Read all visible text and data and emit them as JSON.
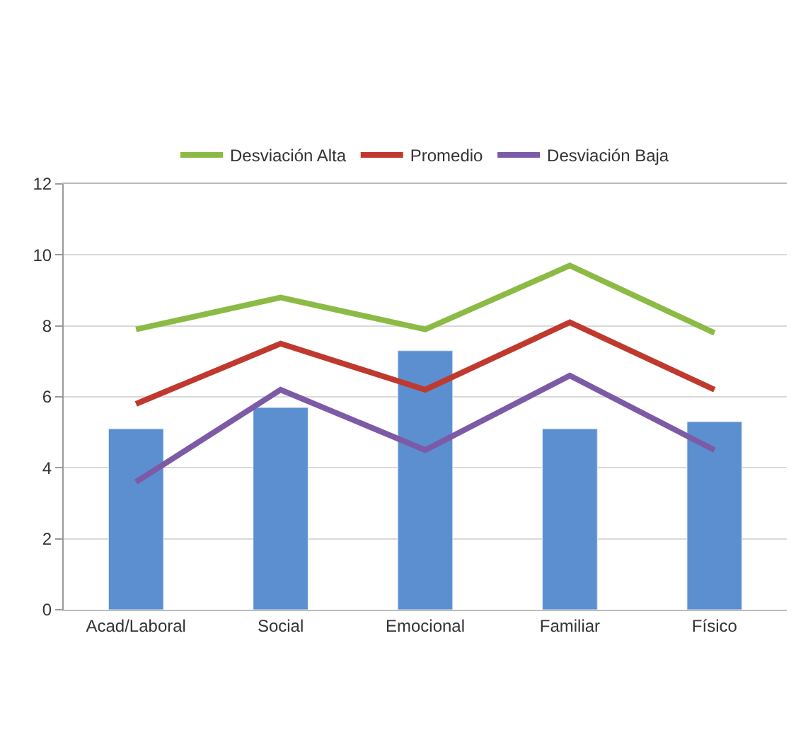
{
  "chart_data": {
    "type": "bar",
    "categories": [
      "Acad/Laboral",
      "Social",
      "Emocional",
      "Familiar",
      "Físico"
    ],
    "series": [
      {
        "color": "#5b8fd0",
        "values": [
          5.1,
          5.7,
          7.3,
          5.1,
          5.3
        ]
      },
      {
        "type": "line",
        "name": "Desviación Alta",
        "color": "#8cbb45",
        "values": [
          7.9,
          8.8,
          7.9,
          9.7,
          7.8
        ]
      },
      {
        "type": "line",
        "name": "Promedio",
        "color": "#c0392f",
        "values": [
          5.8,
          7.5,
          6.2,
          8.1,
          6.2
        ]
      },
      {
        "type": "line",
        "name": "Desviación Baja",
        "color": "#7d5aa6",
        "values": [
          3.6,
          6.2,
          4.5,
          6.6,
          4.5
        ]
      }
    ],
    "ylim": [
      0,
      12
    ],
    "yticks": [
      0,
      2,
      4,
      6,
      8,
      10,
      12
    ],
    "grid": "y",
    "legend": "top",
    "marker": "none",
    "line_style": "solid"
  }
}
